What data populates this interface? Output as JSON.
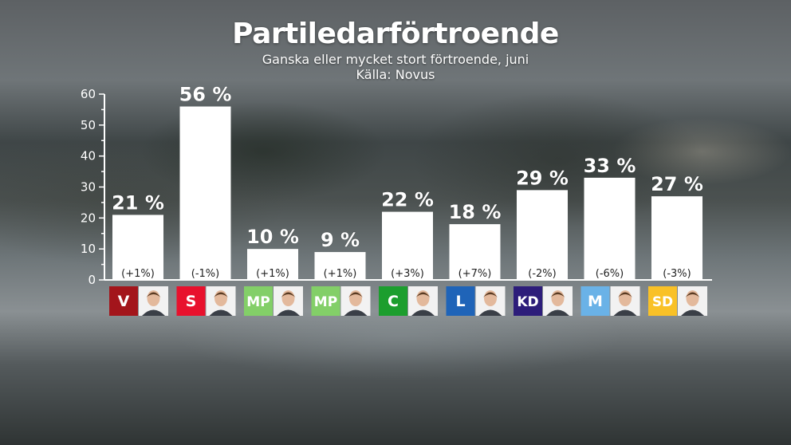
{
  "header": {
    "title": "Partiledarförtroende",
    "subtitle": "Ganska eller mycket stort förtroende, juni",
    "source": "Källa: Novus"
  },
  "chart_data": {
    "type": "bar",
    "title": "Partiledarförtroende",
    "subtitle": "Ganska eller mycket stort förtroende, juni",
    "source": "Källa: Novus",
    "ylim": [
      0,
      60
    ],
    "yticks": [
      0,
      10,
      20,
      30,
      40,
      50,
      60
    ],
    "categories": [
      "V",
      "S",
      "MP",
      "MP",
      "C",
      "L",
      "KD",
      "M",
      "SD"
    ],
    "values": [
      21,
      56,
      10,
      9,
      22,
      18,
      29,
      33,
      27
    ],
    "value_labels": [
      "21 %",
      "56 %",
      "10 %",
      "9 %",
      "22 %",
      "18 %",
      "29 %",
      "33 %",
      "27 %"
    ],
    "changes": [
      "(+1%)",
      "(-1%)",
      "(+1%)",
      "(+1%)",
      "(+3%)",
      "(+7%)",
      "(-2%)",
      "(-6%)",
      "(-3%)"
    ],
    "party_colors": [
      "#a3151b",
      "#e8112d",
      "#83cf68",
      "#83cf68",
      "#1c9e2e",
      "#1f64b8",
      "#2d1d7a",
      "#6ab2e7",
      "#f9c127"
    ],
    "bar_color": "#ffffff",
    "grid": false,
    "legend": "none"
  }
}
